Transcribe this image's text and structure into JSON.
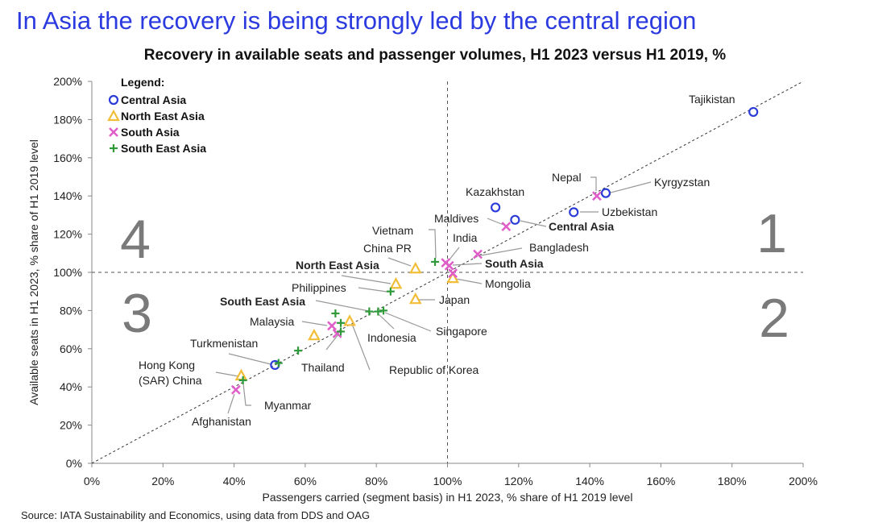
{
  "title": "In Asia the recovery is being strongly led by the central region",
  "source": "Source: IATA Sustainability and Economics, using data from DDS and OAG",
  "chart_data": {
    "type": "scatter",
    "title": "Recovery in available seats and passenger volumes, H1 2023 versus H1 2019, %",
    "xlabel": "Passengers carried (segment basis) in H1 2023, % share of H1 2019 level",
    "ylabel": "Available seats in H1 2023, % share of H1 2019 level",
    "xlim": [
      0,
      200
    ],
    "ylim": [
      0,
      200
    ],
    "xticks": [
      "0%",
      "20%",
      "40%",
      "60%",
      "80%",
      "100%",
      "120%",
      "140%",
      "160%",
      "180%",
      "200%"
    ],
    "yticks": [
      "0%",
      "20%",
      "40%",
      "60%",
      "80%",
      "100%",
      "120%",
      "140%",
      "160%",
      "180%",
      "200%"
    ],
    "legend_title": "Legend:",
    "legend_placement": "top-left",
    "quadrants": [
      "1",
      "2",
      "3",
      "4"
    ],
    "series": [
      {
        "name": "Central Asia",
        "marker": "circle",
        "color": "#2a3bd8",
        "points": [
          {
            "label": "Tajikistan",
            "x": 186,
            "y": 184
          },
          {
            "label": "Kyrgyzstan",
            "x": 144.5,
            "y": 141.5
          },
          {
            "label": "Uzbekistan",
            "x": 135.5,
            "y": 131.5
          },
          {
            "label": "Kazakhstan",
            "x": 113.5,
            "y": 134
          },
          {
            "label": "Central Asia",
            "x": 119,
            "y": 127.5,
            "aggregate": true
          },
          {
            "label": "Turkmenistan",
            "x": 51.5,
            "y": 51.5
          }
        ]
      },
      {
        "name": "North East Asia",
        "marker": "triangle",
        "color": "#f2be3a",
        "points": [
          {
            "label": "China PR",
            "x": 91,
            "y": 102
          },
          {
            "label": "North East Asia",
            "x": 85.5,
            "y": 94,
            "aggregate": true
          },
          {
            "label": "Japan",
            "x": 91,
            "y": 86
          },
          {
            "label": "Mongolia",
            "x": 101.5,
            "y": 97
          },
          {
            "label": "Republic of Korea",
            "x": 72.5,
            "y": 74.5
          },
          {
            "label": "",
            "x": 62.5,
            "y": 67
          },
          {
            "label": "Hong Kong (SAR) China",
            "x": 42,
            "y": 46
          }
        ]
      },
      {
        "name": "South Asia",
        "marker": "x",
        "color": "#e05cc8",
        "points": [
          {
            "label": "Nepal",
            "x": 142,
            "y": 140
          },
          {
            "label": "Maldives",
            "x": 116.5,
            "y": 124
          },
          {
            "label": "Bangladesh",
            "x": 108.5,
            "y": 109.5
          },
          {
            "label": "India",
            "x": 99.5,
            "y": 105
          },
          {
            "label": "South Asia",
            "x": 100.5,
            "y": 103.5,
            "aggregate": true
          },
          {
            "label": "",
            "x": 101.5,
            "y": 99.5
          },
          {
            "label": "Malaysia",
            "x": 67.5,
            "y": 72
          },
          {
            "label": "",
            "x": 69,
            "y": 68
          },
          {
            "label": "Afghanistan",
            "x": 40.5,
            "y": 38.5
          }
        ]
      },
      {
        "name": "South East Asia",
        "marker": "plus",
        "color": "#2f9a3a",
        "points": [
          {
            "label": "Vietnam",
            "x": 96.5,
            "y": 105.5
          },
          {
            "label": "Philippines",
            "x": 84,
            "y": 90
          },
          {
            "label": "South East Asia",
            "x": 78,
            "y": 79.5,
            "aggregate": true
          },
          {
            "label": "Indonesia",
            "x": 80.5,
            "y": 79.5
          },
          {
            "label": "Singapore",
            "x": 82,
            "y": 80
          },
          {
            "label": "",
            "x": 68.5,
            "y": 78.5
          },
          {
            "label": "",
            "x": 70,
            "y": 73.5
          },
          {
            "label": "Thailand",
            "x": 70,
            "y": 69
          },
          {
            "label": "",
            "x": 58,
            "y": 59
          },
          {
            "label": "",
            "x": 52.5,
            "y": 52.5
          },
          {
            "label": "Myanmar",
            "x": 42.5,
            "y": 43.5
          }
        ]
      }
    ]
  }
}
